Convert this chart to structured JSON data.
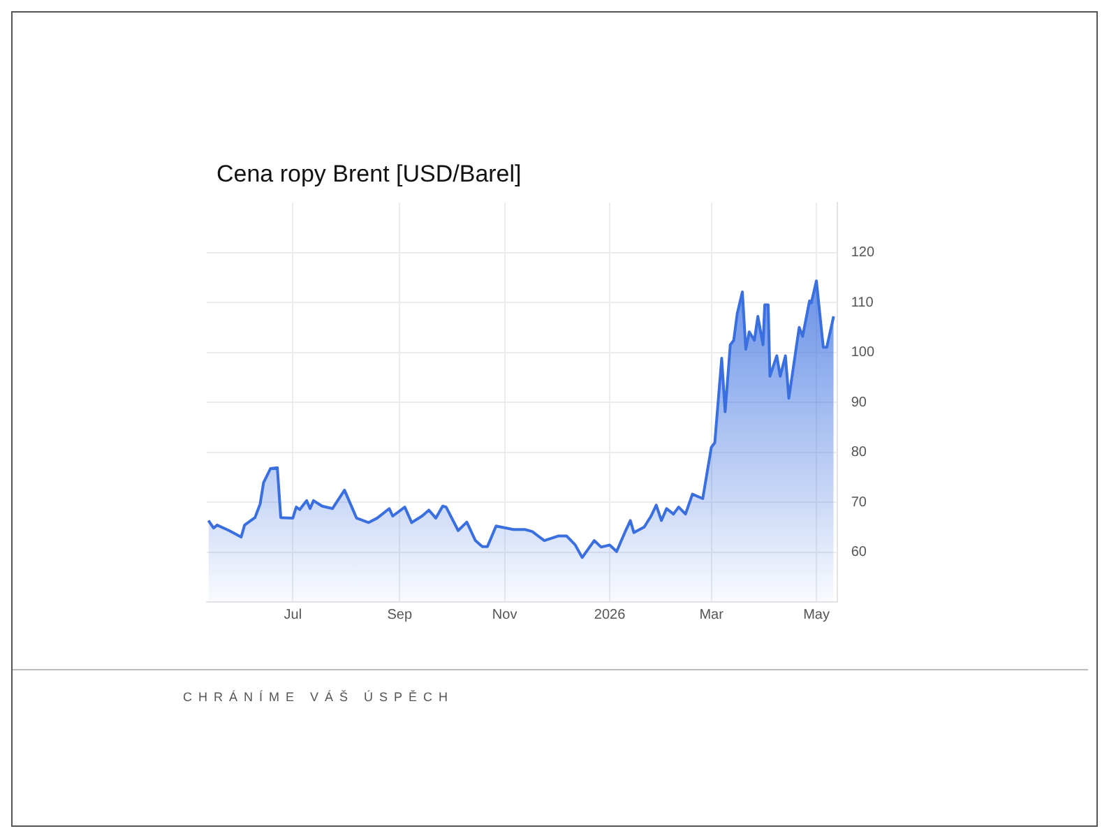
{
  "chart_data": {
    "type": "area",
    "title": "Cena ropy Brent [USD/Barel]",
    "annotations": [
      "CHRÁNÍME VÁŠ ÚSPĚCH"
    ],
    "x": [
      "2025-05-13",
      "2025-05-16",
      "2025-05-18",
      "2025-05-25",
      "2025-06-01",
      "2025-06-03",
      "2025-06-09",
      "2025-06-12",
      "2025-06-14",
      "2025-06-18",
      "2025-06-22",
      "2025-06-24",
      "2025-07-01",
      "2025-07-03",
      "2025-07-05",
      "2025-07-09",
      "2025-07-11",
      "2025-07-13",
      "2025-07-18",
      "2025-07-24",
      "2025-07-31",
      "2025-08-07",
      "2025-08-14",
      "2025-08-19",
      "2025-08-26",
      "2025-08-28",
      "2025-09-04",
      "2025-09-08",
      "2025-09-14",
      "2025-09-18",
      "2025-09-22",
      "2025-09-26",
      "2025-09-28",
      "2025-10-05",
      "2025-10-10",
      "2025-10-15",
      "2025-10-19",
      "2025-10-22",
      "2025-10-27",
      "2025-11-06",
      "2025-11-13",
      "2025-11-17",
      "2025-11-24",
      "2025-12-02",
      "2025-12-07",
      "2025-12-12",
      "2025-12-16",
      "2025-12-23",
      "2025-12-27",
      "2026-01-01",
      "2026-01-05",
      "2026-01-10",
      "2026-01-13",
      "2026-01-15",
      "2026-01-21",
      "2026-01-25",
      "2026-01-28",
      "2026-01-31",
      "2026-02-03",
      "2026-02-07",
      "2026-02-10",
      "2026-02-14",
      "2026-02-18",
      "2026-02-24",
      "2026-03-01",
      "2026-03-03",
      "2026-03-07",
      "2026-03-09",
      "2026-03-12",
      "2026-03-14",
      "2026-03-16",
      "2026-03-19",
      "2026-03-21",
      "2026-03-23",
      "2026-03-26",
      "2026-03-28",
      "2026-03-31",
      "2026-04-01",
      "2026-04-03",
      "2026-04-04",
      "2026-04-08",
      "2026-04-10",
      "2026-04-13",
      "2026-04-15",
      "2026-04-21",
      "2026-04-23",
      "2026-04-27",
      "2026-04-28",
      "2026-05-01",
      "2026-05-05",
      "2026-05-07",
      "2026-05-11"
    ],
    "series": [
      {
        "color": "#3a6fe0",
        "values": [
          66.3,
          64.8,
          65.4,
          64.3,
          63.0,
          65.4,
          66.9,
          69.6,
          73.9,
          76.7,
          76.9,
          66.9,
          66.8,
          69.0,
          68.5,
          70.3,
          68.7,
          70.3,
          69.2,
          68.7,
          72.4,
          66.8,
          65.9,
          66.8,
          68.7,
          67.2,
          69.0,
          65.9,
          67.2,
          68.4,
          66.8,
          69.2,
          69.0,
          64.3,
          66.0,
          62.3,
          61.1,
          61.1,
          65.2,
          64.5,
          64.5,
          64.1,
          62.3,
          63.2,
          63.2,
          61.4,
          58.9,
          62.3,
          61.0,
          61.4,
          60.1,
          64.1,
          66.3,
          63.9,
          65.0,
          67.2,
          69.4,
          66.3,
          68.7,
          67.6,
          69.0,
          67.6,
          71.6,
          70.7,
          81.0,
          81.9,
          98.8,
          88.1,
          101.5,
          102.4,
          107.7,
          112.1,
          100.6,
          104.1,
          102.4,
          107.2,
          101.5,
          109.5,
          109.5,
          95.2,
          99.3,
          95.2,
          99.3,
          90.8,
          105.0,
          103.2,
          110.3,
          109.9,
          114.3,
          101.0,
          101.0,
          107.2
        ]
      }
    ],
    "xlim": [
      "2025-05-12",
      "2026-05-13"
    ],
    "xticks": [
      {
        "value": "2025-07-01",
        "label": "Jul"
      },
      {
        "value": "2025-09-01",
        "label": "Sep"
      },
      {
        "value": "2025-11-01",
        "label": "Nov"
      },
      {
        "value": "2026-01-01",
        "label": "2026"
      },
      {
        "value": "2026-03-01",
        "label": "Mar"
      },
      {
        "value": "2026-05-01",
        "label": "May"
      }
    ],
    "ylim": [
      50,
      130
    ],
    "yticks": [
      60,
      70,
      80,
      90,
      100,
      110,
      120
    ],
    "grid": true,
    "legend": false,
    "marker": "none",
    "line_style": "solid"
  }
}
